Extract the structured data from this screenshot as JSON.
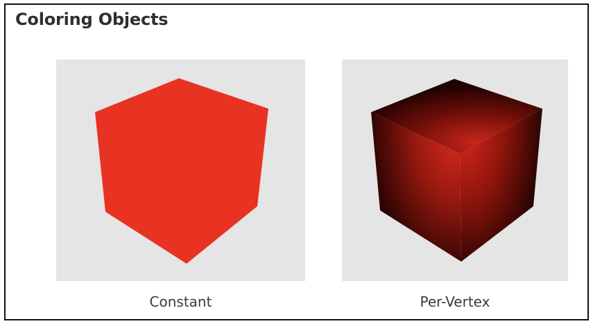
{
  "title": "Coloring Objects",
  "panels": [
    {
      "caption": "Constant",
      "cube_color": "#E83323"
    },
    {
      "caption": "Per-Vertex",
      "center_color": "#E02A1E",
      "edge_color": "#2A0302"
    }
  ],
  "colors": {
    "panel_background": "#E5E5E5",
    "border": "#111111"
  }
}
